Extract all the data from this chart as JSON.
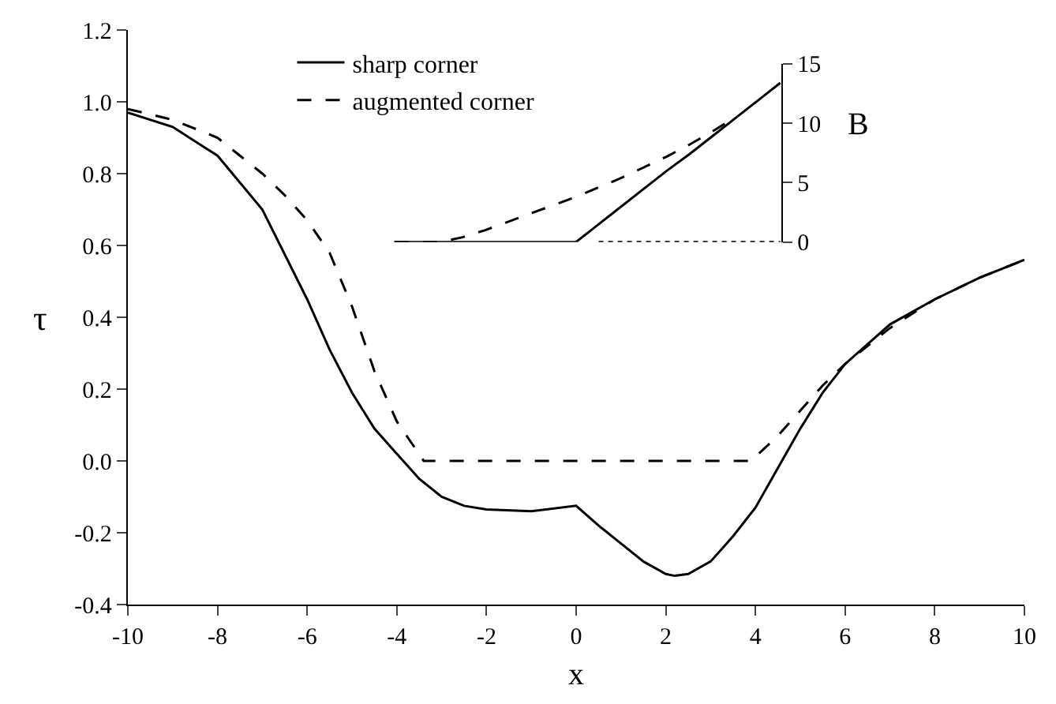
{
  "chart_data": [
    {
      "type": "line",
      "xlabel": "x",
      "ylabel": "τ",
      "xlim": [
        -10,
        10
      ],
      "xticks": [
        -10,
        -8,
        -6,
        -4,
        -2,
        0,
        2,
        4,
        6,
        8,
        10
      ],
      "ylim": [
        -0.4,
        1.2
      ],
      "yticks": [
        -0.4,
        -0.2,
        {
          "value": 0,
          "label": "0.0"
        },
        0.2,
        0.4,
        0.6,
        0.8,
        {
          "value": 1,
          "label": "1.0"
        },
        1.2
      ],
      "legend": "top",
      "marker": "none",
      "series": [
        {
          "name": "sharp corner",
          "color": "#000000",
          "line_style": "solid",
          "x": [
            -10,
            -9,
            -8,
            -7,
            -6,
            -5.5,
            -5,
            -4.5,
            -4,
            -3.5,
            -3,
            -2.5,
            -2,
            -1,
            0,
            0.5,
            1,
            1.5,
            2,
            2.2,
            2.5,
            3,
            3.5,
            4,
            4.5,
            5,
            5.5,
            6,
            7,
            8,
            9,
            10
          ],
          "values": [
            0.97,
            0.93,
            0.85,
            0.7,
            0.45,
            0.31,
            0.19,
            0.09,
            0.02,
            -0.05,
            -0.1,
            -0.125,
            -0.135,
            -0.14,
            -0.125,
            -0.18,
            -0.23,
            -0.28,
            -0.315,
            -0.32,
            -0.315,
            -0.28,
            -0.21,
            -0.13,
            -0.02,
            0.09,
            0.19,
            0.27,
            0.38,
            0.45,
            0.51,
            0.56
          ]
        },
        {
          "name": "augmented corner",
          "color": "#000000",
          "line_style": "dashed",
          "x": [
            -10,
            -9,
            -8,
            -7,
            -6.5,
            -6,
            -5.5,
            -5,
            -4.5,
            -4,
            -3.4,
            0,
            3.9,
            4.5,
            5,
            5.5,
            6,
            7,
            8,
            9,
            10
          ],
          "values": [
            0.98,
            0.95,
            0.9,
            0.8,
            0.74,
            0.67,
            0.58,
            0.43,
            0.25,
            0.11,
            0,
            0,
            0,
            0.07,
            0.14,
            0.21,
            0.27,
            0.37,
            0.45,
            0.51,
            0.56
          ]
        }
      ]
    },
    {
      "type": "line",
      "ylabel": "B",
      "categories": [
        null,
        null,
        null,
        null,
        null,
        null,
        null,
        null,
        null,
        null,
        null,
        null,
        null,
        null,
        null,
        null,
        null,
        null
      ],
      "ylim": [
        0,
        15
      ],
      "yticks": [
        0,
        5,
        10,
        15
      ],
      "tick_labels": "y",
      "marker": "none",
      "series": [
        {
          "color": "#000000",
          "line_style": "solid",
          "values": [
            0,
            0,
            0,
            0,
            0,
            0,
            0,
            0,
            0,
            1.5,
            3.0,
            4.5,
            6.0,
            7.4,
            8.9,
            10.4,
            11.9,
            13.4
          ]
        },
        {
          "color": "#000000",
          "line_style": "dashed",
          "values": [
            0,
            0,
            0,
            0.4,
            1.0,
            1.7,
            2.4,
            3.1,
            3.8,
            4.6,
            5.4,
            6.3,
            7.2,
            8.2,
            9.3,
            10.5,
            null,
            null
          ]
        },
        {
          "color": "#000000",
          "line_style": "dotted",
          "values": [
            null,
            null,
            null,
            null,
            null,
            null,
            null,
            null,
            null,
            0,
            0,
            0,
            0,
            0,
            0,
            0,
            0,
            0
          ]
        }
      ]
    }
  ]
}
